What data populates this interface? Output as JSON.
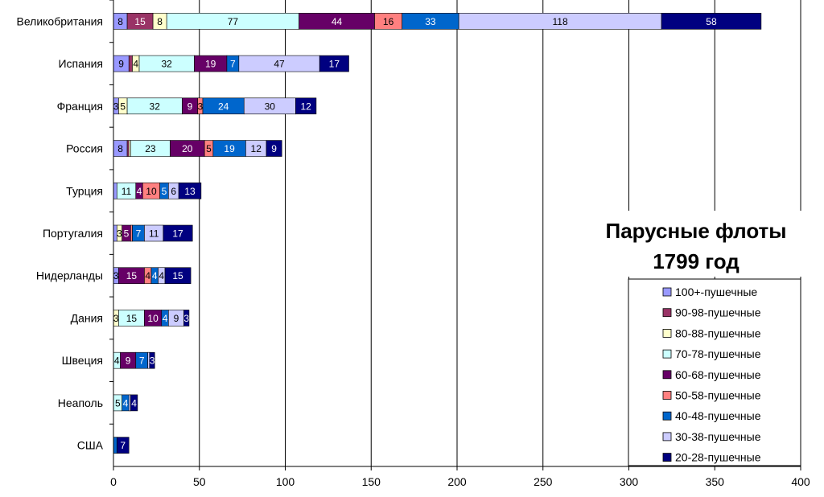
{
  "chart_data": {
    "type": "bar",
    "orientation": "horizontal",
    "stacked": true,
    "title": [
      "Парусные флоты",
      "1799 год"
    ],
    "xlim": [
      0,
      400
    ],
    "xticks": [
      0,
      50,
      100,
      150,
      200,
      250,
      300,
      350,
      400
    ],
    "grid": true,
    "legend_position": "right",
    "categories": [
      "Великобритания",
      "Испания",
      "Франция",
      "Россия",
      "Турция",
      "Португалия",
      "Нидерланды",
      "Дания",
      "Швеция",
      "Неаполь",
      "США"
    ],
    "series": [
      {
        "name": "100+-пушечные",
        "color": "#9999ff",
        "values": [
          8,
          9,
          3,
          8,
          2,
          2,
          3,
          0,
          0,
          0,
          0
        ]
      },
      {
        "name": "90-98-пушечные",
        "color": "#993366",
        "values": [
          15,
          2,
          0,
          1,
          0,
          0,
          0,
          0,
          0,
          0,
          0
        ]
      },
      {
        "name": "80-88-пушечные",
        "color": "#ffffcc",
        "values": [
          8,
          4,
          5,
          1,
          0,
          3,
          0,
          3,
          0,
          0,
          0
        ]
      },
      {
        "name": "70-78-пушечные",
        "color": "#ccffff",
        "values": [
          77,
          32,
          32,
          23,
          11,
          0,
          0,
          15,
          4,
          5,
          0
        ]
      },
      {
        "name": "60-68-пушечные",
        "color": "#660066",
        "values": [
          44,
          19,
          9,
          20,
          4,
          5,
          15,
          10,
          9,
          0,
          0
        ]
      },
      {
        "name": "50-58-пушечные",
        "color": "#ff8080",
        "values": [
          16,
          0,
          3,
          5,
          10,
          1,
          4,
          0,
          0,
          0,
          0
        ]
      },
      {
        "name": "40-48-пушечные",
        "color": "#0066cc",
        "values": [
          33,
          7,
          24,
          19,
          5,
          7,
          4,
          4,
          7,
          4,
          2
        ]
      },
      {
        "name": "30-38-пушечные",
        "color": "#ccccff",
        "values": [
          118,
          47,
          30,
          12,
          6,
          11,
          4,
          9,
          1,
          1,
          0
        ]
      },
      {
        "name": "20-28-пушечные",
        "color": "#000080",
        "values": [
          58,
          17,
          12,
          9,
          13,
          17,
          15,
          3,
          3,
          4,
          7
        ]
      }
    ]
  }
}
